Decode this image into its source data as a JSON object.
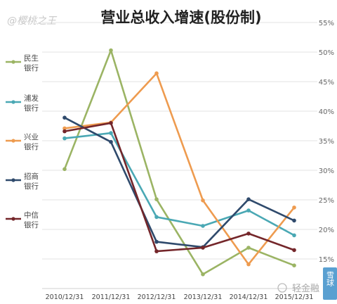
{
  "watermark_top": "@樱桃之王",
  "watermark_bottom": "轻金融",
  "watermark_side": "雪球",
  "chart_data": {
    "type": "line",
    "title": "营业总收入增速(股份制)",
    "categories": [
      "2010/12/31",
      "2011/12/31",
      "2012/12/31",
      "2013/12/31",
      "2014/12/31",
      "2015/12/31"
    ],
    "y_ticks": [
      "15%",
      "20%",
      "25%",
      "30%",
      "35%",
      "40%",
      "45%",
      "50%",
      "55%"
    ],
    "ylim": [
      10,
      55
    ],
    "y_unit": "%",
    "grid": true,
    "legend_position": "left",
    "series": [
      {
        "name": "民生银行",
        "color": "#9bb464",
        "values": [
          30.2,
          50.3,
          25.1,
          12.4,
          16.9,
          13.9
        ]
      },
      {
        "name": "浦发银行",
        "color": "#4aa8b4",
        "values": [
          35.4,
          36.3,
          22.1,
          20.6,
          23.2,
          19.0
        ]
      },
      {
        "name": "兴业银行",
        "color": "#ee9b4f",
        "values": [
          37.1,
          38.1,
          46.4,
          24.9,
          14.1,
          23.7
        ]
      },
      {
        "name": "招商银行",
        "color": "#2f4a6c",
        "values": [
          38.9,
          34.8,
          17.9,
          17.0,
          25.1,
          21.5
        ]
      },
      {
        "name": "中信银行",
        "color": "#74262a",
        "values": [
          36.6,
          38.0,
          16.3,
          16.9,
          19.3,
          16.5
        ]
      }
    ]
  }
}
